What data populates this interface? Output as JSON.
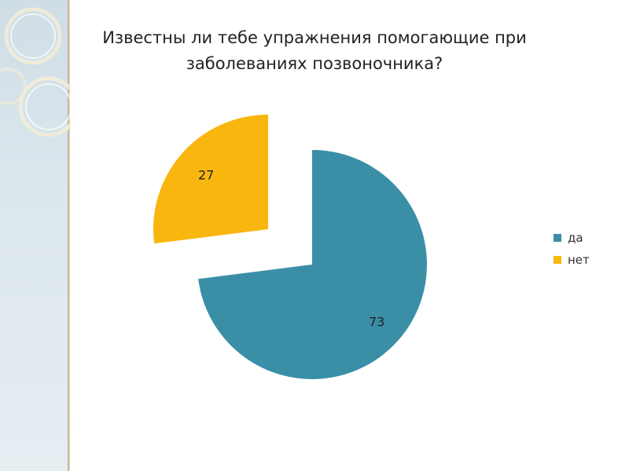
{
  "title_lines": [
    "Известны ли тебе упражнения помогающие при",
    "заболеваниях позвоночника?"
  ],
  "chart_data": {
    "type": "pie",
    "title": "Известны ли тебе упражнения помогающие при заболеваниях позвоночника?",
    "categories": [
      "да",
      "нет"
    ],
    "values": [
      73,
      27
    ],
    "colors": [
      "#3a8fa7",
      "#f9b60e"
    ],
    "legend_position": "right",
    "exploded": true
  },
  "legend": [
    {
      "label": "да",
      "color": "#3a8fa7"
    },
    {
      "label": "нет",
      "color": "#f9b60e"
    }
  ]
}
